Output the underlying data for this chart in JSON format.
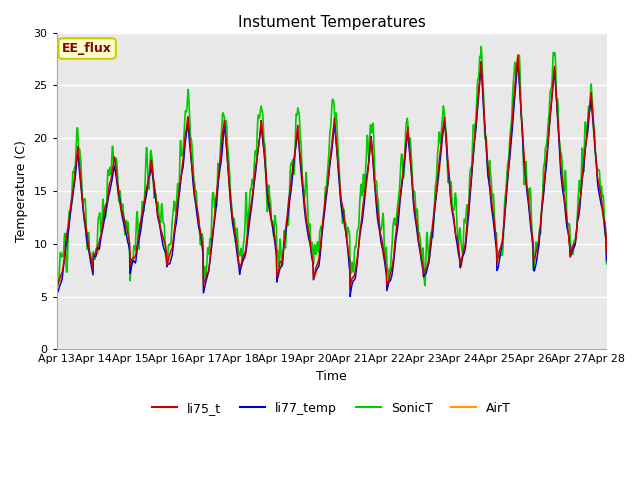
{
  "title": "Instument Temperatures",
  "xlabel": "Time",
  "ylabel": "Temperature (C)",
  "ylim": [
    0,
    30
  ],
  "yticks": [
    0,
    5,
    10,
    15,
    20,
    25,
    30
  ],
  "x_tick_labels": [
    "Apr 13",
    "Apr 14",
    "Apr 15",
    "Apr 16",
    "Apr 17",
    "Apr 18",
    "Apr 19",
    "Apr 20",
    "Apr 21",
    "Apr 22",
    "Apr 23",
    "Apr 24",
    "Apr 25",
    "Apr 26",
    "Apr 27",
    "Apr 28"
  ],
  "line_colors": {
    "li75_t": "#cc0000",
    "li77_temp": "#0000cc",
    "SonicT": "#00cc00",
    "AirT": "#ff9900"
  },
  "line_widths": {
    "li75_t": 1.0,
    "li77_temp": 1.0,
    "SonicT": 1.2,
    "AirT": 1.0
  },
  "annotation_text": "EE_flux",
  "bg_color": "#e8e8e8",
  "fig_bg_color": "#ffffff",
  "title_fontsize": 11,
  "label_fontsize": 9,
  "tick_fontsize": 8,
  "legend_fontsize": 9
}
